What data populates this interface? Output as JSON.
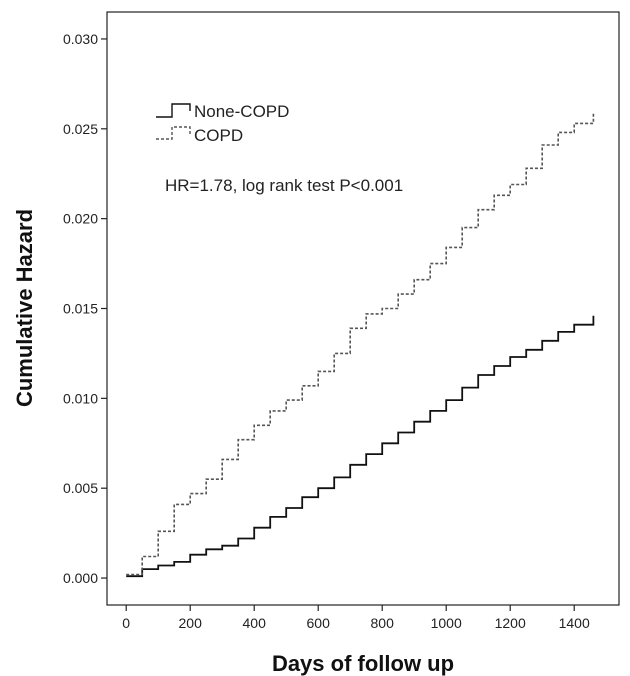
{
  "chart_data": {
    "type": "line",
    "title": "",
    "xlabel": "Days of follow up",
    "ylabel": "Cumulative Hazard",
    "xlim": [
      -60,
      1540
    ],
    "ylim": [
      -0.0015,
      0.0315
    ],
    "xticks": [
      0,
      200,
      400,
      600,
      800,
      1000,
      1200,
      1400
    ],
    "xtick_labels": [
      "0",
      "200",
      "400",
      "600",
      "800",
      "1000",
      "1200",
      "1400"
    ],
    "yticks": [
      0,
      0.005,
      0.01,
      0.015,
      0.02,
      0.025,
      0.03
    ],
    "ytick_labels": [
      "0.000",
      "0.005",
      "0.010",
      "0.015",
      "0.020",
      "0.025",
      "0.030"
    ],
    "grid": false,
    "legend_position": "top-left",
    "annotation": "HR=1.78, log rank test P<0.001",
    "series": [
      {
        "name": "None-COPD",
        "style": "solid",
        "color": "#111111",
        "x": [
          0,
          50,
          100,
          150,
          200,
          250,
          300,
          350,
          400,
          450,
          500,
          550,
          600,
          650,
          700,
          750,
          800,
          850,
          900,
          950,
          1000,
          1050,
          1100,
          1150,
          1200,
          1250,
          1300,
          1350,
          1400,
          1460
        ],
        "y": [
          0.0001,
          0.0005,
          0.0007,
          0.0009,
          0.0013,
          0.0016,
          0.0018,
          0.0022,
          0.0028,
          0.0034,
          0.0039,
          0.0045,
          0.005,
          0.0056,
          0.0063,
          0.0069,
          0.0075,
          0.0081,
          0.0087,
          0.0093,
          0.0099,
          0.0106,
          0.0113,
          0.0118,
          0.0123,
          0.0127,
          0.0132,
          0.0137,
          0.0141,
          0.0146
        ]
      },
      {
        "name": "COPD",
        "style": "dashed",
        "color": "#555555",
        "x": [
          0,
          50,
          100,
          150,
          200,
          250,
          300,
          350,
          400,
          450,
          500,
          550,
          600,
          650,
          700,
          750,
          800,
          850,
          900,
          950,
          1000,
          1050,
          1100,
          1150,
          1200,
          1250,
          1300,
          1350,
          1400,
          1460
        ],
        "y": [
          0.0002,
          0.0012,
          0.0026,
          0.0041,
          0.0047,
          0.0055,
          0.0066,
          0.0077,
          0.0085,
          0.0093,
          0.0099,
          0.0107,
          0.0115,
          0.0125,
          0.0139,
          0.0147,
          0.015,
          0.0158,
          0.0166,
          0.0175,
          0.0184,
          0.0195,
          0.0205,
          0.0213,
          0.0219,
          0.0228,
          0.0241,
          0.0248,
          0.0253,
          0.0259
        ]
      }
    ]
  },
  "colors": {
    "axis": "#222222",
    "background": "#ffffff"
  }
}
